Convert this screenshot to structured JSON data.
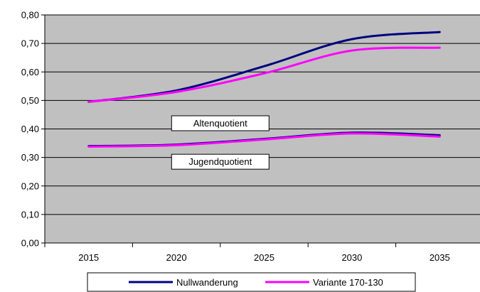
{
  "chart_data": {
    "type": "line",
    "x": [
      2015,
      2020,
      2025,
      2030,
      2035
    ],
    "x_tick_labels": [
      "2015",
      "2020",
      "2025",
      "2030",
      "2035"
    ],
    "ylim": [
      0,
      0.8
    ],
    "y_ticks": [
      0.0,
      0.1,
      0.2,
      0.3,
      0.4,
      0.5,
      0.6,
      0.7,
      0.8
    ],
    "y_tick_labels": [
      "0,00",
      "0,10",
      "0,20",
      "0,30",
      "0,40",
      "0,50",
      "0,60",
      "0,70",
      "0,80"
    ],
    "grid": "horizontal",
    "plot_background": "#c0c0c0",
    "legend_position": "bottom",
    "series": [
      {
        "name": "Nullwanderung",
        "color": "#000080",
        "group": "Altenquotient",
        "values": [
          0.495,
          0.535,
          0.62,
          0.715,
          0.74
        ]
      },
      {
        "name": "Variante 170-130",
        "color": "#ff00ff",
        "group": "Altenquotient",
        "values": [
          0.495,
          0.53,
          0.595,
          0.675,
          0.685
        ]
      },
      {
        "name": "Nullwanderung",
        "color": "#000080",
        "group": "Jugendquotient",
        "values": [
          0.34,
          0.345,
          0.365,
          0.387,
          0.378
        ]
      },
      {
        "name": "Variante 170-130",
        "color": "#ff00ff",
        "group": "Jugendquotient",
        "values": [
          0.338,
          0.343,
          0.363,
          0.384,
          0.373
        ]
      }
    ],
    "annotations": [
      {
        "text": "Altenquotient",
        "x": 2022.5,
        "y": 0.42
      },
      {
        "text": "Jugendquotient",
        "x": 2022.5,
        "y": 0.285
      }
    ],
    "legend": [
      {
        "label": "Nullwanderung",
        "color": "#000080"
      },
      {
        "label": "Variante 170-130",
        "color": "#ff00ff"
      }
    ]
  }
}
